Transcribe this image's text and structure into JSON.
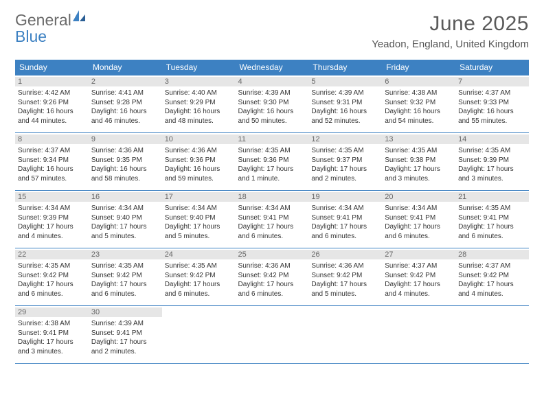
{
  "logo": {
    "general": "General",
    "blue": "Blue"
  },
  "title": "June 2025",
  "location": "Yeadon, England, United Kingdom",
  "colors": {
    "header_bg": "#3d81c2",
    "header_text": "#ffffff",
    "border": "#3d81c2",
    "daynum_bg": "#e6e6e6",
    "daynum_text": "#666666",
    "body_text": "#333333"
  },
  "weekdays": [
    "Sunday",
    "Monday",
    "Tuesday",
    "Wednesday",
    "Thursday",
    "Friday",
    "Saturday"
  ],
  "weeks": [
    [
      {
        "n": "1",
        "sr": "4:42 AM",
        "ss": "9:26 PM",
        "dl": "16 hours and 44 minutes."
      },
      {
        "n": "2",
        "sr": "4:41 AM",
        "ss": "9:28 PM",
        "dl": "16 hours and 46 minutes."
      },
      {
        "n": "3",
        "sr": "4:40 AM",
        "ss": "9:29 PM",
        "dl": "16 hours and 48 minutes."
      },
      {
        "n": "4",
        "sr": "4:39 AM",
        "ss": "9:30 PM",
        "dl": "16 hours and 50 minutes."
      },
      {
        "n": "5",
        "sr": "4:39 AM",
        "ss": "9:31 PM",
        "dl": "16 hours and 52 minutes."
      },
      {
        "n": "6",
        "sr": "4:38 AM",
        "ss": "9:32 PM",
        "dl": "16 hours and 54 minutes."
      },
      {
        "n": "7",
        "sr": "4:37 AM",
        "ss": "9:33 PM",
        "dl": "16 hours and 55 minutes."
      }
    ],
    [
      {
        "n": "8",
        "sr": "4:37 AM",
        "ss": "9:34 PM",
        "dl": "16 hours and 57 minutes."
      },
      {
        "n": "9",
        "sr": "4:36 AM",
        "ss": "9:35 PM",
        "dl": "16 hours and 58 minutes."
      },
      {
        "n": "10",
        "sr": "4:36 AM",
        "ss": "9:36 PM",
        "dl": "16 hours and 59 minutes."
      },
      {
        "n": "11",
        "sr": "4:35 AM",
        "ss": "9:36 PM",
        "dl": "17 hours and 1 minute."
      },
      {
        "n": "12",
        "sr": "4:35 AM",
        "ss": "9:37 PM",
        "dl": "17 hours and 2 minutes."
      },
      {
        "n": "13",
        "sr": "4:35 AM",
        "ss": "9:38 PM",
        "dl": "17 hours and 3 minutes."
      },
      {
        "n": "14",
        "sr": "4:35 AM",
        "ss": "9:39 PM",
        "dl": "17 hours and 3 minutes."
      }
    ],
    [
      {
        "n": "15",
        "sr": "4:34 AM",
        "ss": "9:39 PM",
        "dl": "17 hours and 4 minutes."
      },
      {
        "n": "16",
        "sr": "4:34 AM",
        "ss": "9:40 PM",
        "dl": "17 hours and 5 minutes."
      },
      {
        "n": "17",
        "sr": "4:34 AM",
        "ss": "9:40 PM",
        "dl": "17 hours and 5 minutes."
      },
      {
        "n": "18",
        "sr": "4:34 AM",
        "ss": "9:41 PM",
        "dl": "17 hours and 6 minutes."
      },
      {
        "n": "19",
        "sr": "4:34 AM",
        "ss": "9:41 PM",
        "dl": "17 hours and 6 minutes."
      },
      {
        "n": "20",
        "sr": "4:34 AM",
        "ss": "9:41 PM",
        "dl": "17 hours and 6 minutes."
      },
      {
        "n": "21",
        "sr": "4:35 AM",
        "ss": "9:41 PM",
        "dl": "17 hours and 6 minutes."
      }
    ],
    [
      {
        "n": "22",
        "sr": "4:35 AM",
        "ss": "9:42 PM",
        "dl": "17 hours and 6 minutes."
      },
      {
        "n": "23",
        "sr": "4:35 AM",
        "ss": "9:42 PM",
        "dl": "17 hours and 6 minutes."
      },
      {
        "n": "24",
        "sr": "4:35 AM",
        "ss": "9:42 PM",
        "dl": "17 hours and 6 minutes."
      },
      {
        "n": "25",
        "sr": "4:36 AM",
        "ss": "9:42 PM",
        "dl": "17 hours and 6 minutes."
      },
      {
        "n": "26",
        "sr": "4:36 AM",
        "ss": "9:42 PM",
        "dl": "17 hours and 5 minutes."
      },
      {
        "n": "27",
        "sr": "4:37 AM",
        "ss": "9:42 PM",
        "dl": "17 hours and 4 minutes."
      },
      {
        "n": "28",
        "sr": "4:37 AM",
        "ss": "9:42 PM",
        "dl": "17 hours and 4 minutes."
      }
    ],
    [
      {
        "n": "29",
        "sr": "4:38 AM",
        "ss": "9:41 PM",
        "dl": "17 hours and 3 minutes."
      },
      {
        "n": "30",
        "sr": "4:39 AM",
        "ss": "9:41 PM",
        "dl": "17 hours and 2 minutes."
      },
      null,
      null,
      null,
      null,
      null
    ]
  ],
  "labels": {
    "sunrise": "Sunrise:",
    "sunset": "Sunset:",
    "daylight": "Daylight:"
  }
}
